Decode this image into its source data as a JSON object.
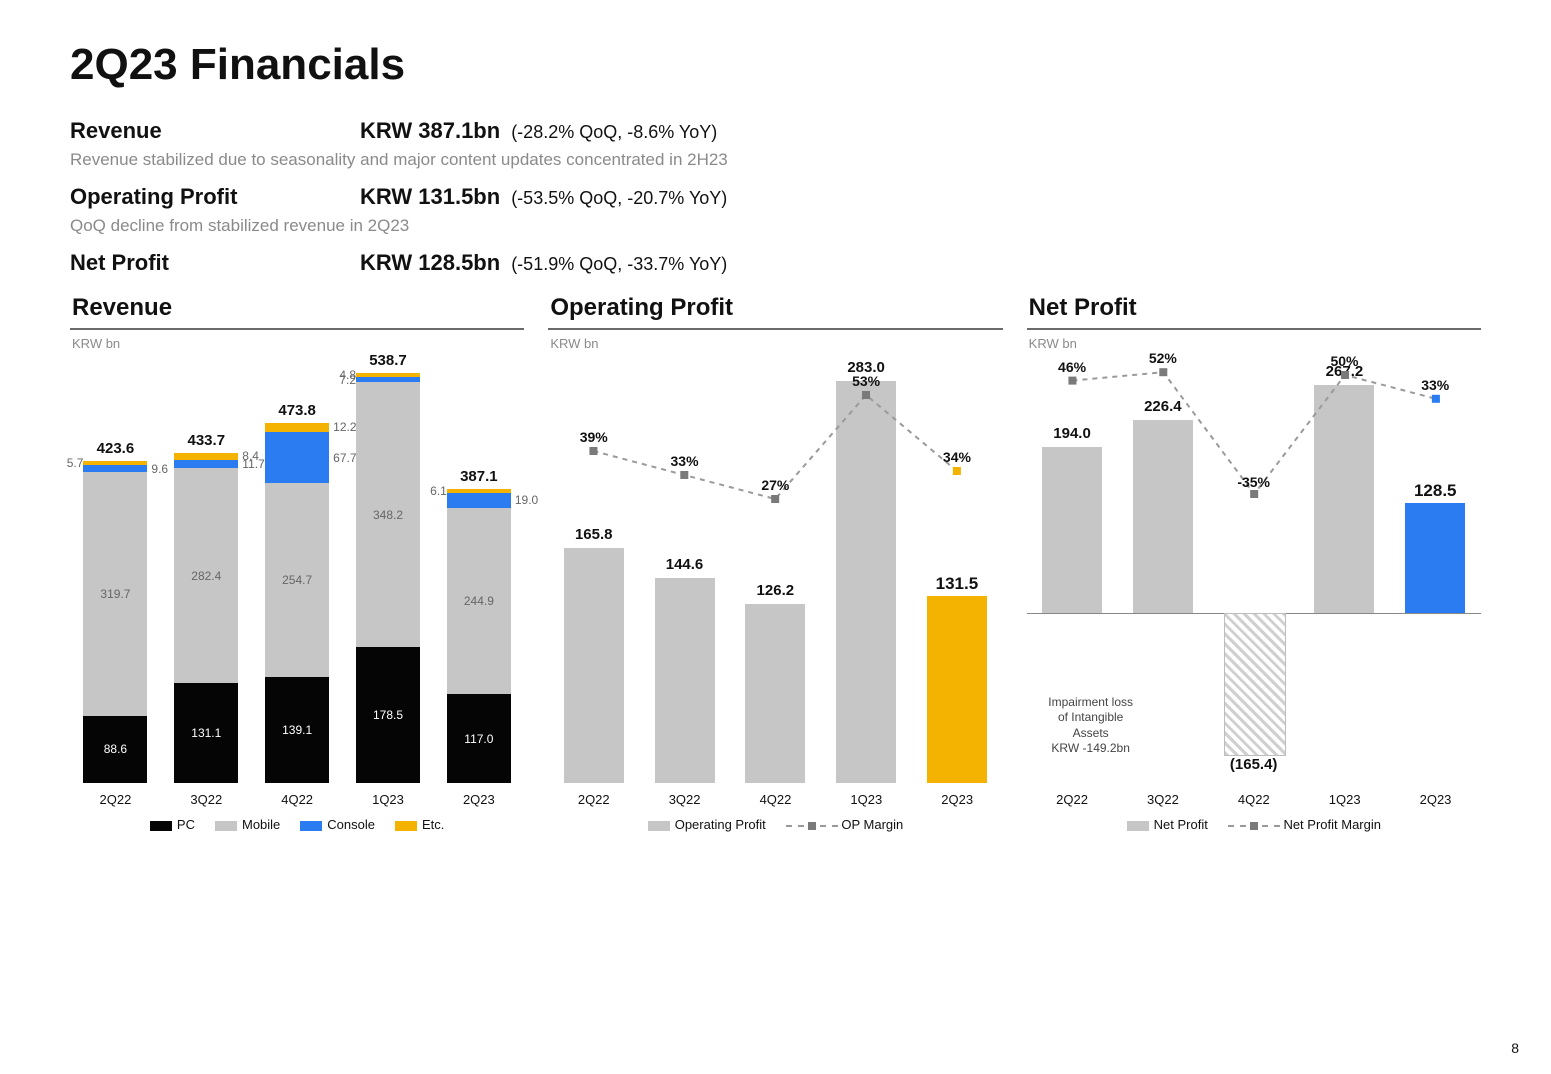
{
  "page_title": "2Q23 Financials",
  "page_number": "8",
  "metrics": [
    {
      "label": "Revenue",
      "value": "KRW 387.1bn",
      "change": "(-28.2% QoQ, -8.6% YoY)",
      "sub": "Revenue stabilized due to seasonality and major content updates concentrated in 2H23"
    },
    {
      "label": "Operating Profit",
      "value": "KRW 131.5bn",
      "change": "(-53.5% QoQ, -20.7% YoY)",
      "sub": "QoQ decline from stabilized revenue in 2Q23"
    },
    {
      "label": "Net Profit",
      "value": "KRW 128.5bn",
      "change": "(-51.9% QoQ, -33.7% YoY)",
      "sub": ""
    }
  ],
  "colors": {
    "pc": "#050505",
    "mobile": "#c6c6c6",
    "console": "#2a7cf0",
    "etc": "#f5b301",
    "grey_bar": "#c6c6c6",
    "orange": "#f5b301",
    "blue": "#2a7cf0",
    "marker": "#7a7a7a",
    "dash": "#9a9a9a",
    "hatch": "#bdbdbd"
  },
  "revenue_chart": {
    "title": "Revenue",
    "unit": "KRW bn",
    "ymax": 560,
    "categories": [
      "2Q22",
      "3Q22",
      "4Q22",
      "1Q23",
      "2Q23"
    ],
    "totals": [
      "423.6",
      "433.7",
      "473.8",
      "538.7",
      "387.1"
    ],
    "series": [
      {
        "name": "PC",
        "color": "#050505",
        "values": [
          88.6,
          131.1,
          139.1,
          178.5,
          117.0
        ],
        "labelpos": "inside",
        "txtcolor": "#fff"
      },
      {
        "name": "Mobile",
        "color": "#c6c6c6",
        "values": [
          319.7,
          282.4,
          254.7,
          348.2,
          244.9
        ],
        "labelpos": "inside",
        "txtcolor": "#666"
      },
      {
        "name": "Console",
        "color": "#2a7cf0",
        "values": [
          9.6,
          11.7,
          67.7,
          7.2,
          19.0
        ],
        "labelpos": "right",
        "txtcolor": "#666"
      },
      {
        "name": "Etc.",
        "color": "#f5b301",
        "values": [
          5.7,
          8.4,
          12.2,
          4.8,
          6.1
        ],
        "labelpos": "right",
        "txtcolor": "#666"
      }
    ],
    "legend": [
      [
        "PC",
        "#050505"
      ],
      [
        "Mobile",
        "#c6c6c6"
      ],
      [
        "Console",
        "#2a7cf0"
      ],
      [
        "Etc.",
        "#f5b301"
      ]
    ]
  },
  "op_chart": {
    "title": "Operating Profit",
    "unit": "KRW bn",
    "ymax": 300,
    "categories": [
      "2Q22",
      "3Q22",
      "4Q22",
      "1Q23",
      "2Q23"
    ],
    "values": [
      165.8,
      144.6,
      126.2,
      283.0,
      131.5
    ],
    "colors": [
      "#c6c6c6",
      "#c6c6c6",
      "#c6c6c6",
      "#c6c6c6",
      "#f5b301"
    ],
    "margin_pct": [
      "39%",
      "33%",
      "27%",
      "53%",
      "34%"
    ],
    "margin_y": [
      0.39,
      0.33,
      0.27,
      0.53,
      0.34
    ],
    "legend_bar": "Operating Profit",
    "legend_line": "OP Margin",
    "highlight_last": true
  },
  "np_chart": {
    "title": "Net Profit",
    "unit": "KRW bn",
    "ymin": -200,
    "ymax": 300,
    "categories": [
      "2Q22",
      "3Q22",
      "4Q22",
      "1Q23",
      "2Q23"
    ],
    "values": [
      194.0,
      226.4,
      -165.4,
      267.2,
      128.5
    ],
    "value_labels": [
      "194.0",
      "226.4",
      "(165.4)",
      "267.2",
      "128.5"
    ],
    "colors": [
      "#c6c6c6",
      "#c6c6c6",
      "hatch",
      "#c6c6c6",
      "#2a7cf0"
    ],
    "margin_pct": [
      "46%",
      "52%",
      "-35%",
      "50%",
      "33%"
    ],
    "margin_y": [
      0.46,
      0.52,
      -0.35,
      0.5,
      0.33
    ],
    "legend_bar": "Net Profit",
    "legend_line": "Net Profit Margin",
    "note": "Impairment loss of Intangible Assets KRW -149.2bn"
  }
}
